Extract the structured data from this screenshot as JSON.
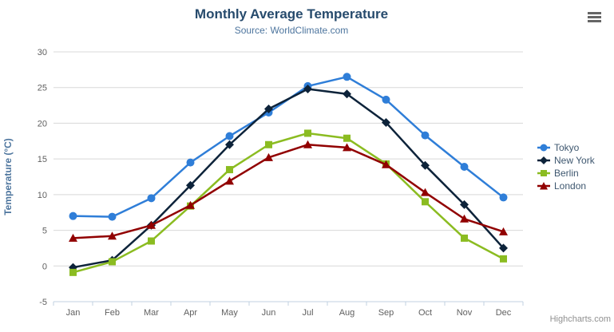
{
  "header": {
    "title": "Monthly Average Temperature",
    "subtitle": "Source: WorldClimate.com"
  },
  "credits": {
    "label": "Highcharts.com"
  },
  "export_menu": {
    "icon": "hamburger-icon"
  },
  "colors": {
    "title_text": "#274b6d",
    "subtitle_text": "#4d759e",
    "axis_label_text": "#606060",
    "axis_title_text": "#4d759e",
    "legend_text": "#3e576f",
    "grid_line": "#d8d8d8",
    "x_axis_line": "#c0d0e0",
    "credits_text": "#909090"
  },
  "chart_data": {
    "type": "line",
    "title": "Monthly Average Temperature",
    "subtitle": "Source: WorldClimate.com",
    "xlabel": "",
    "ylabel": "Temperature (°C)",
    "ylim": [
      -5,
      30
    ],
    "ytick_interval": 5,
    "yticks": [
      -5,
      0,
      5,
      10,
      15,
      20,
      25,
      30
    ],
    "grid": true,
    "legend_position": "right",
    "categories": [
      "Jan",
      "Feb",
      "Mar",
      "Apr",
      "May",
      "Jun",
      "Jul",
      "Aug",
      "Sep",
      "Oct",
      "Nov",
      "Dec"
    ],
    "series": [
      {
        "name": "Tokyo",
        "color": "#2f7ed8",
        "marker": "circle",
        "values": [
          7.0,
          6.9,
          9.5,
          14.5,
          18.2,
          21.5,
          25.2,
          26.5,
          23.3,
          18.3,
          13.9,
          9.6
        ]
      },
      {
        "name": "New York",
        "color": "#0d233a",
        "marker": "diamond",
        "values": [
          -0.2,
          0.8,
          5.7,
          11.3,
          17.0,
          22.0,
          24.8,
          24.1,
          20.1,
          14.1,
          8.6,
          2.5
        ]
      },
      {
        "name": "Berlin",
        "color": "#8bbc21",
        "marker": "square",
        "values": [
          -0.9,
          0.6,
          3.5,
          8.4,
          13.5,
          17.0,
          18.6,
          17.9,
          14.3,
          9.0,
          3.9,
          1.0
        ]
      },
      {
        "name": "London",
        "color": "#910000",
        "marker": "triangle",
        "values": [
          3.9,
          4.2,
          5.7,
          8.5,
          11.9,
          15.2,
          17.0,
          16.6,
          14.2,
          10.3,
          6.6,
          4.8
        ]
      }
    ]
  }
}
